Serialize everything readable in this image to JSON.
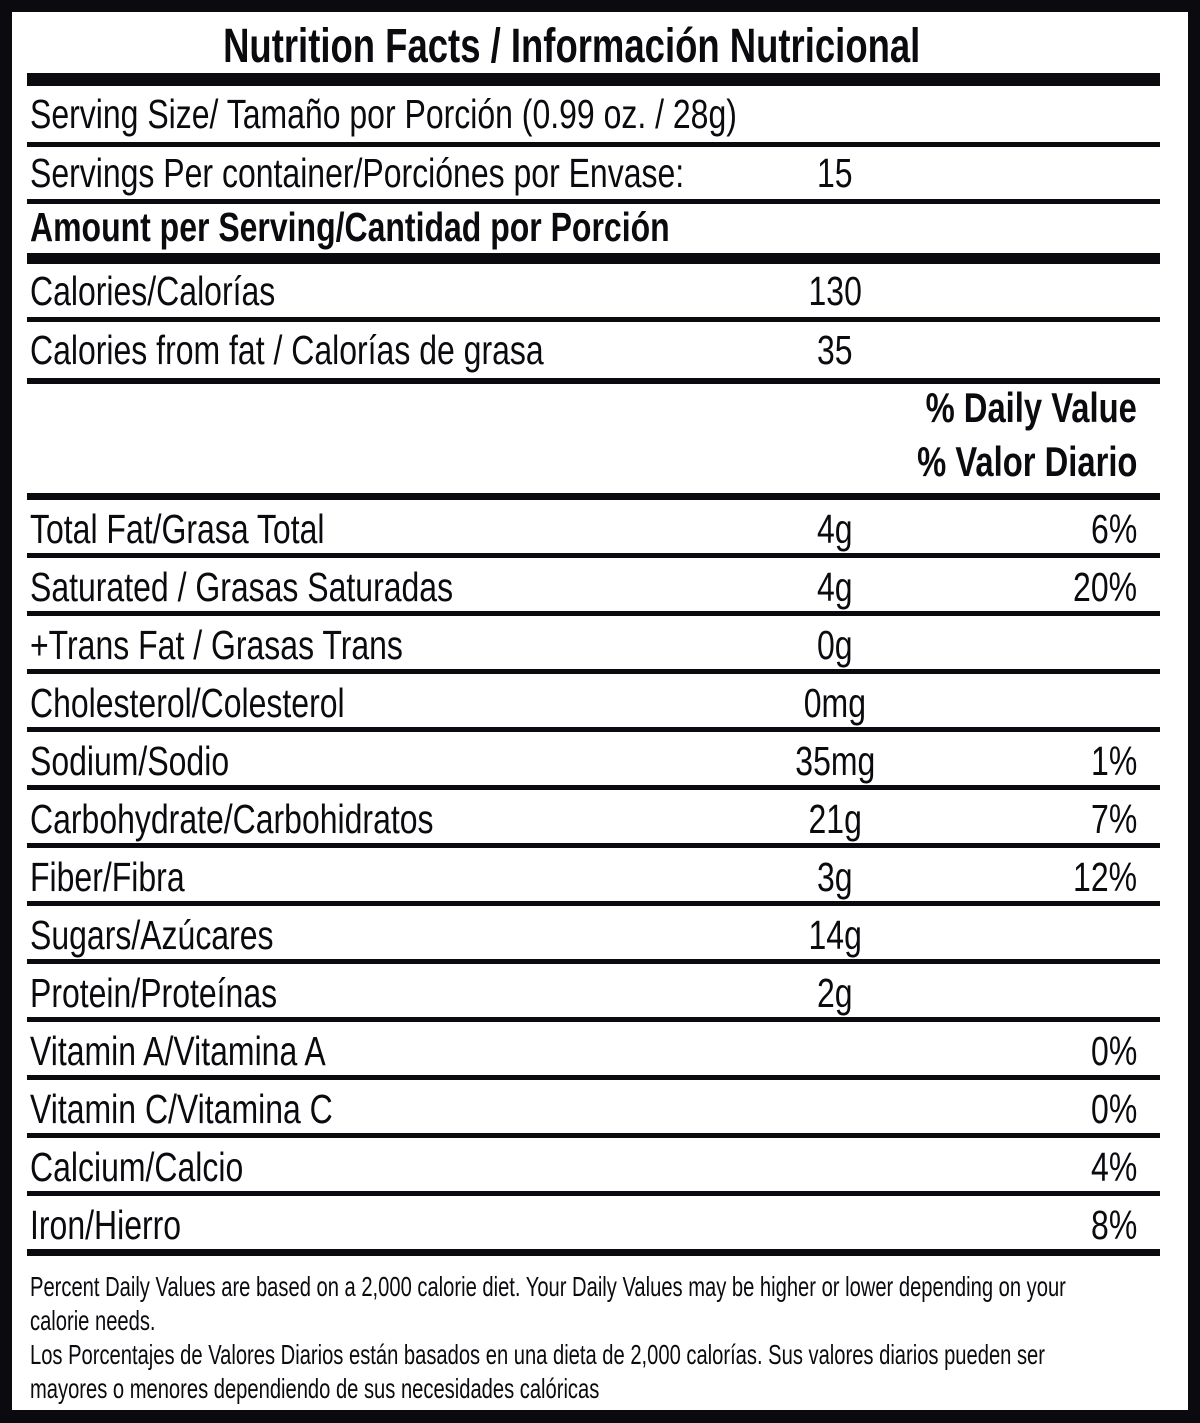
{
  "label": {
    "title": "Nutrition Facts / Información Nutricional",
    "serving_size": "Serving Size/ Tamaño por Porción (0.99 oz. / 28g)",
    "servings_per_container": {
      "label": "Servings Per container/Porciónes por Envase:",
      "value": "15"
    },
    "amount_per_serving": "Amount per Serving/Cantidad por Porción",
    "calories": {
      "label": "Calories/Calorías",
      "value": "130"
    },
    "calories_from_fat": {
      "label": "Calories from fat / Calorías de grasa",
      "value": "35"
    },
    "daily_value_header": {
      "line1": "% Daily Value",
      "line2": "% Valor Diario"
    },
    "nutrients": [
      {
        "label": "Total Fat/Grasa Total",
        "amount": "4g",
        "dv": "6%"
      },
      {
        "label": "Saturated / Grasas Saturadas",
        "amount": "4g",
        "dv": "20%"
      },
      {
        "label": "+Trans Fat / Grasas Trans",
        "amount": "0g",
        "dv": ""
      },
      {
        "label": "Cholesterol/Colesterol",
        "amount": "0mg",
        "dv": ""
      },
      {
        "label": "Sodium/Sodio",
        "amount": "35mg",
        "dv": "1%"
      },
      {
        "label": "Carbohydrate/Carbohidratos",
        "amount": "21g",
        "dv": "7%"
      },
      {
        "label": "Fiber/Fibra",
        "amount": "3g",
        "dv": "12%"
      },
      {
        "label": "Sugars/Azúcares",
        "amount": "14g",
        "dv": ""
      },
      {
        "label": "Protein/Proteínas",
        "amount": "2g",
        "dv": ""
      },
      {
        "label": "Vitamin A/Vitamina A",
        "amount": "",
        "dv": "0%"
      },
      {
        "label": "Vitamin C/Vitamina C",
        "amount": "",
        "dv": "0%"
      },
      {
        "label": "Calcium/Calcio",
        "amount": "",
        "dv": "4%"
      },
      {
        "label": "Iron/Hierro",
        "amount": "",
        "dv": "8%"
      }
    ],
    "footnote_lines": [
      "Percent Daily Values are based on a 2,000 calorie diet. Your Daily Values may be higher or lower depending on your",
      "calorie needs.",
      "Los Porcentajes de Valores Diarios están basados en una dieta de 2,000 calorías. Sus valores diarios pueden ser",
      "mayores o menores dependiendo de sus necesidades calóricas"
    ]
  },
  "colors": {
    "ink": "#0b0b0f",
    "paper": "#ffffff"
  }
}
